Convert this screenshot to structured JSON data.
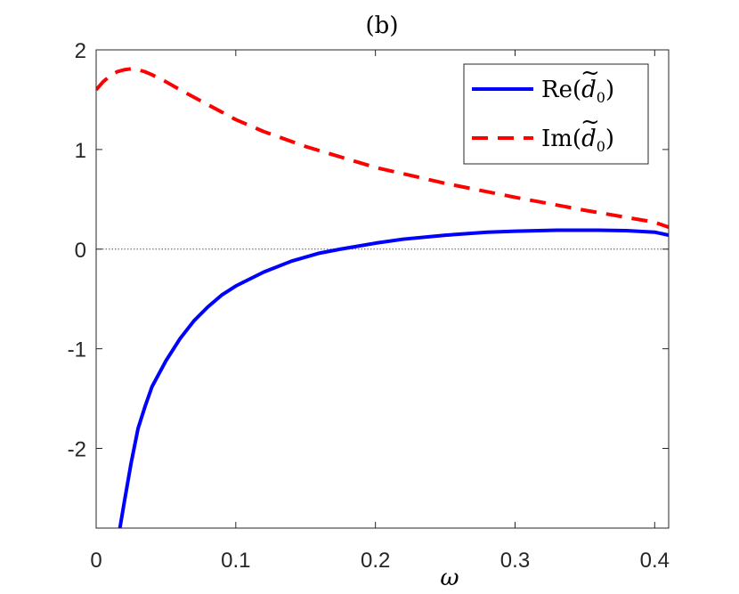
{
  "chart_data": {
    "type": "line",
    "title": "(b)",
    "xlabel": "ω",
    "ylabel": "",
    "xlim": [
      0,
      0.41
    ],
    "ylim": [
      -2.8,
      2
    ],
    "xticks": [
      0,
      0.1,
      0.2,
      0.3,
      0.4
    ],
    "xtick_labels": [
      "0",
      "0.1",
      "0.2",
      "0.3",
      "0.4"
    ],
    "yticks": [
      -2,
      -1,
      0,
      1,
      2
    ],
    "ytick_labels": [
      "-2",
      "-1",
      "0",
      "1",
      "2"
    ],
    "grid": false,
    "legend_position": "top-right",
    "reference_line": {
      "y": 0,
      "style": "dotted",
      "color": "#555555"
    },
    "series": [
      {
        "name": "Re(d̃0)",
        "color": "#0000ff",
        "style": "solid",
        "x": [
          0.017,
          0.02,
          0.025,
          0.03,
          0.035,
          0.04,
          0.05,
          0.06,
          0.07,
          0.08,
          0.09,
          0.1,
          0.12,
          0.14,
          0.16,
          0.175,
          0.2,
          0.22,
          0.25,
          0.28,
          0.3,
          0.33,
          0.36,
          0.38,
          0.4,
          0.41
        ],
        "y": [
          -2.8,
          -2.55,
          -2.15,
          -1.8,
          -1.58,
          -1.38,
          -1.12,
          -0.9,
          -0.72,
          -0.58,
          -0.46,
          -0.37,
          -0.23,
          -0.12,
          -0.04,
          0.0,
          0.06,
          0.1,
          0.14,
          0.17,
          0.18,
          0.19,
          0.19,
          0.185,
          0.17,
          0.14
        ]
      },
      {
        "name": "Im(d̃0)",
        "color": "#ff0000",
        "style": "dashed",
        "x": [
          0.0,
          0.005,
          0.01,
          0.015,
          0.02,
          0.025,
          0.03,
          0.035,
          0.04,
          0.05,
          0.06,
          0.08,
          0.1,
          0.12,
          0.15,
          0.2,
          0.25,
          0.3,
          0.35,
          0.4,
          0.41
        ],
        "y": [
          1.6,
          1.68,
          1.74,
          1.78,
          1.8,
          1.81,
          1.8,
          1.78,
          1.75,
          1.68,
          1.6,
          1.45,
          1.3,
          1.18,
          1.03,
          0.82,
          0.66,
          0.52,
          0.39,
          0.27,
          0.22
        ]
      }
    ]
  },
  "legend": {
    "items": [
      {
        "prefix": "Re(",
        "var": "d",
        "tilde": "~",
        "sub": "0",
        "suffix": ")",
        "color": "#0000ff",
        "style": "solid"
      },
      {
        "prefix": "Im(",
        "var": "d",
        "tilde": "~",
        "sub": "0",
        "suffix": ")",
        "color": "#ff0000",
        "style": "dashed"
      }
    ]
  }
}
